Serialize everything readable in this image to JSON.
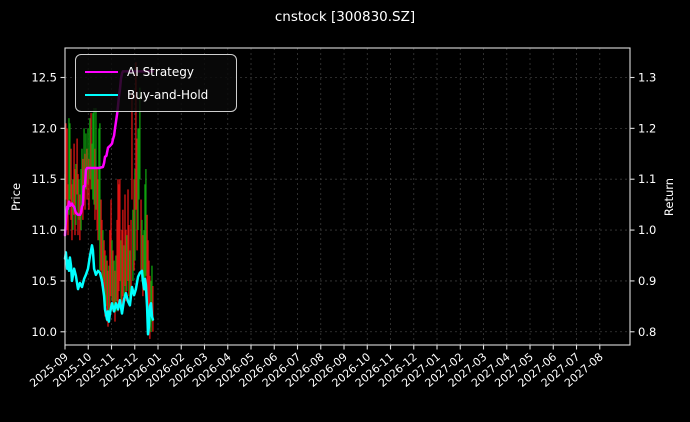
{
  "chart_data": {
    "type": "candlestick",
    "title": "cnstock [300830.SZ]",
    "ylabel_left": "Price",
    "ylabel_right": "Return",
    "legend_position": "upper-left",
    "grid": true,
    "colors": {
      "background": "#000000",
      "text": "#ffffff",
      "grid": "#3a3a3a",
      "spine": "#dcdcdc",
      "candle_up": "#0ea10e",
      "candle_down": "#dd1515",
      "ai_strategy": "#ff00ff",
      "buy_and_hold": "#00ffff"
    },
    "axes": {
      "x_tick_labels": [
        "2025-09",
        "2025-10",
        "2025-11",
        "2025-12",
        "2026-01",
        "2026-02",
        "2026-03",
        "2026-04",
        "2026-05",
        "2026-06",
        "2026-07",
        "2026-08",
        "2026-09",
        "2026-10",
        "2026-11",
        "2026-12",
        "2027-01",
        "2027-02",
        "2027-03",
        "2027-04",
        "2027-05",
        "2027-06",
        "2027-07",
        "2027-08"
      ],
      "x_tick_angle_deg": -40,
      "x_lim_months": [
        0,
        24.3
      ],
      "price_tick_labels": [
        "10.0",
        "10.5",
        "11.0",
        "11.5",
        "12.0",
        "12.5"
      ],
      "price_lim": [
        9.87,
        12.79
      ],
      "return_tick_labels": [
        "0.8",
        "0.9",
        "1.0",
        "1.1",
        "1.2",
        "1.3"
      ],
      "return_lim": [
        0.774,
        1.358
      ]
    },
    "series": [
      {
        "name": "AI Strategy",
        "color_key": "ai_strategy",
        "axis": "return",
        "points": [
          [
            0.0,
            0.99
          ],
          [
            0.02,
            1.005
          ],
          [
            0.04,
            1.018
          ],
          [
            0.09,
            1.046
          ],
          [
            0.13,
            1.042
          ],
          [
            0.17,
            1.056
          ],
          [
            0.22,
            1.048
          ],
          [
            0.3,
            1.052
          ],
          [
            0.34,
            1.048
          ],
          [
            0.39,
            1.046
          ],
          [
            0.43,
            1.04
          ],
          [
            0.47,
            1.034
          ],
          [
            0.56,
            1.03
          ],
          [
            0.65,
            1.03
          ],
          [
            0.69,
            1.034
          ],
          [
            0.73,
            1.046
          ],
          [
            0.77,
            1.05
          ],
          [
            0.8,
            1.086
          ],
          [
            0.86,
            1.086
          ],
          [
            0.9,
            1.118
          ],
          [
            0.95,
            1.122
          ],
          [
            1.2,
            1.122
          ],
          [
            1.46,
            1.122
          ],
          [
            1.63,
            1.124
          ],
          [
            1.68,
            1.132
          ],
          [
            1.72,
            1.144
          ],
          [
            1.78,
            1.146
          ],
          [
            1.85,
            1.162
          ],
          [
            1.95,
            1.166
          ],
          [
            2.02,
            1.17
          ],
          [
            2.06,
            1.178
          ],
          [
            2.11,
            1.186
          ],
          [
            2.15,
            1.2
          ],
          [
            2.19,
            1.212
          ],
          [
            2.24,
            1.228
          ],
          [
            2.28,
            1.244
          ],
          [
            2.32,
            1.262
          ],
          [
            2.36,
            1.276
          ],
          [
            2.41,
            1.298
          ],
          [
            2.45,
            1.308
          ],
          [
            2.49,
            1.312
          ],
          [
            3.0,
            1.312
          ],
          [
            3.78,
            1.312
          ]
        ]
      },
      {
        "name": "Buy-and-Hold",
        "color_key": "buy_and_hold",
        "axis": "return",
        "points": [
          [
            0.0,
            0.944
          ],
          [
            0.04,
            0.956
          ],
          [
            0.09,
            0.924
          ],
          [
            0.13,
            0.94
          ],
          [
            0.17,
            0.92
          ],
          [
            0.21,
            0.946
          ],
          [
            0.26,
            0.93
          ],
          [
            0.3,
            0.9
          ],
          [
            0.39,
            0.924
          ],
          [
            0.47,
            0.91
          ],
          [
            0.56,
            0.884
          ],
          [
            0.64,
            0.896
          ],
          [
            0.73,
            0.888
          ],
          [
            0.82,
            0.904
          ],
          [
            0.9,
            0.912
          ],
          [
            0.99,
            0.924
          ],
          [
            1.07,
            0.948
          ],
          [
            1.16,
            0.97
          ],
          [
            1.2,
            0.96
          ],
          [
            1.25,
            0.924
          ],
          [
            1.33,
            0.912
          ],
          [
            1.42,
            0.92
          ],
          [
            1.5,
            0.916
          ],
          [
            1.59,
            0.9
          ],
          [
            1.68,
            0.87
          ],
          [
            1.72,
            0.844
          ],
          [
            1.81,
            0.824
          ],
          [
            1.85,
            0.84
          ],
          [
            1.89,
            0.82
          ],
          [
            1.93,
            0.836
          ],
          [
            2.02,
            0.856
          ],
          [
            2.11,
            0.84
          ],
          [
            2.19,
            0.856
          ],
          [
            2.28,
            0.844
          ],
          [
            2.36,
            0.862
          ],
          [
            2.45,
            0.836
          ],
          [
            2.54,
            0.864
          ],
          [
            2.62,
            0.876
          ],
          [
            2.71,
            0.86
          ],
          [
            2.79,
            0.852
          ],
          [
            2.88,
            0.888
          ],
          [
            2.97,
            0.872
          ],
          [
            3.05,
            0.884
          ],
          [
            3.14,
            0.908
          ],
          [
            3.22,
            0.916
          ],
          [
            3.31,
            0.92
          ],
          [
            3.35,
            0.9
          ],
          [
            3.4,
            0.884
          ],
          [
            3.44,
            0.904
          ],
          [
            3.48,
            0.892
          ],
          [
            3.53,
            0.848
          ],
          [
            3.57,
            0.795
          ],
          [
            3.61,
            0.81
          ],
          [
            3.65,
            0.85
          ],
          [
            3.7,
            0.856
          ],
          [
            3.74,
            0.83
          ],
          [
            3.78,
            0.824
          ]
        ]
      }
    ],
    "candles": [
      [
        0.0,
        11.05,
        11.55,
        "g"
      ],
      [
        0.04,
        11.3,
        12.05,
        "r"
      ],
      [
        0.09,
        11.0,
        12.0,
        "r"
      ],
      [
        0.13,
        10.95,
        11.45,
        "r"
      ],
      [
        0.17,
        11.15,
        12.1,
        "g"
      ],
      [
        0.21,
        11.3,
        12.05,
        "g"
      ],
      [
        0.26,
        11.1,
        11.8,
        "r"
      ],
      [
        0.3,
        10.9,
        11.45,
        "r"
      ],
      [
        0.34,
        11.0,
        11.5,
        "g"
      ],
      [
        0.39,
        11.15,
        11.85,
        "r"
      ],
      [
        0.43,
        10.95,
        11.6,
        "r"
      ],
      [
        0.47,
        11.05,
        11.65,
        "g"
      ],
      [
        0.52,
        11.35,
        11.9,
        "r"
      ],
      [
        0.56,
        10.95,
        11.55,
        "r"
      ],
      [
        0.6,
        11.1,
        11.5,
        "g"
      ],
      [
        0.64,
        10.9,
        11.35,
        "r"
      ],
      [
        0.69,
        11.0,
        11.6,
        "g"
      ],
      [
        0.73,
        11.2,
        11.8,
        "g"
      ],
      [
        0.77,
        11.1,
        11.7,
        "r"
      ],
      [
        0.82,
        11.3,
        12.0,
        "g"
      ],
      [
        0.86,
        11.2,
        11.75,
        "r"
      ],
      [
        0.9,
        11.4,
        11.95,
        "g"
      ],
      [
        0.95,
        11.3,
        11.8,
        "r"
      ],
      [
        0.99,
        11.45,
        12.0,
        "g"
      ],
      [
        1.03,
        11.2,
        11.7,
        "r"
      ],
      [
        1.07,
        11.5,
        12.1,
        "g"
      ],
      [
        1.12,
        11.4,
        12.15,
        "r"
      ],
      [
        1.16,
        11.4,
        11.85,
        "g"
      ],
      [
        1.2,
        11.3,
        12.15,
        "g"
      ],
      [
        1.25,
        11.25,
        12.2,
        "g"
      ],
      [
        1.29,
        11.1,
        11.8,
        "r"
      ],
      [
        1.33,
        11.2,
        12.2,
        "g"
      ],
      [
        1.38,
        11.0,
        11.6,
        "r"
      ],
      [
        1.42,
        10.9,
        11.5,
        "r"
      ],
      [
        1.46,
        10.9,
        12.0,
        "g"
      ],
      [
        1.5,
        10.6,
        12.05,
        "g"
      ],
      [
        1.55,
        10.6,
        11.3,
        "r"
      ],
      [
        1.59,
        10.45,
        11.1,
        "r"
      ],
      [
        1.63,
        10.5,
        11.0,
        "g"
      ],
      [
        1.68,
        10.3,
        10.9,
        "r"
      ],
      [
        1.72,
        10.15,
        10.8,
        "r"
      ],
      [
        1.76,
        10.25,
        10.75,
        "g"
      ],
      [
        1.81,
        10.1,
        10.7,
        "r"
      ],
      [
        1.85,
        10.05,
        10.6,
        "r"
      ],
      [
        1.89,
        10.15,
        10.65,
        "g"
      ],
      [
        1.93,
        10.2,
        11.0,
        "r"
      ],
      [
        1.98,
        10.35,
        11.3,
        "r"
      ],
      [
        2.02,
        10.3,
        10.9,
        "g"
      ],
      [
        2.06,
        10.2,
        10.8,
        "r"
      ],
      [
        2.11,
        10.25,
        10.7,
        "g"
      ],
      [
        2.15,
        10.1,
        10.6,
        "r"
      ],
      [
        2.19,
        10.2,
        10.75,
        "g"
      ],
      [
        2.24,
        10.3,
        11.1,
        "r"
      ],
      [
        2.28,
        10.2,
        11.5,
        "r"
      ],
      [
        2.32,
        10.4,
        11.45,
        "r"
      ],
      [
        2.36,
        10.5,
        11.5,
        "r"
      ],
      [
        2.41,
        10.3,
        10.9,
        "g"
      ],
      [
        2.45,
        10.25,
        11.0,
        "r"
      ],
      [
        2.49,
        10.35,
        11.2,
        "r"
      ],
      [
        2.54,
        10.3,
        10.85,
        "g"
      ],
      [
        2.58,
        10.45,
        11.35,
        "r"
      ],
      [
        2.62,
        10.3,
        11.0,
        "r"
      ],
      [
        2.66,
        10.4,
        10.95,
        "g"
      ],
      [
        2.71,
        10.5,
        11.4,
        "r"
      ],
      [
        2.75,
        10.35,
        11.05,
        "r"
      ],
      [
        2.79,
        10.25,
        10.8,
        "g"
      ],
      [
        2.84,
        10.4,
        11.1,
        "r"
      ],
      [
        2.88,
        11.3,
        12.35,
        "r"
      ],
      [
        2.92,
        10.5,
        11.2,
        "g"
      ],
      [
        2.97,
        10.6,
        11.5,
        "r"
      ],
      [
        3.01,
        10.7,
        11.6,
        "g"
      ],
      [
        3.05,
        11.2,
        12.65,
        "r"
      ],
      [
        3.1,
        10.8,
        11.9,
        "r"
      ],
      [
        3.14,
        11.0,
        12.0,
        "g"
      ],
      [
        3.18,
        11.3,
        12.0,
        "g"
      ],
      [
        3.22,
        11.5,
        12.4,
        "g"
      ],
      [
        3.27,
        10.6,
        11.3,
        "r"
      ],
      [
        3.31,
        10.5,
        11.1,
        "g"
      ],
      [
        3.35,
        10.35,
        10.95,
        "r"
      ],
      [
        3.4,
        10.4,
        11.0,
        "g"
      ],
      [
        3.44,
        10.5,
        11.45,
        "g"
      ],
      [
        3.48,
        10.55,
        11.6,
        "g"
      ],
      [
        3.53,
        10.4,
        11.15,
        "r"
      ],
      [
        3.57,
        10.2,
        10.9,
        "r"
      ],
      [
        3.61,
        10.05,
        10.7,
        "r"
      ],
      [
        3.65,
        9.93,
        10.55,
        "r"
      ],
      [
        3.7,
        10.0,
        10.5,
        "g"
      ],
      [
        3.74,
        10.1,
        10.65,
        "g"
      ],
      [
        3.78,
        10.0,
        10.45,
        "r"
      ]
    ]
  }
}
